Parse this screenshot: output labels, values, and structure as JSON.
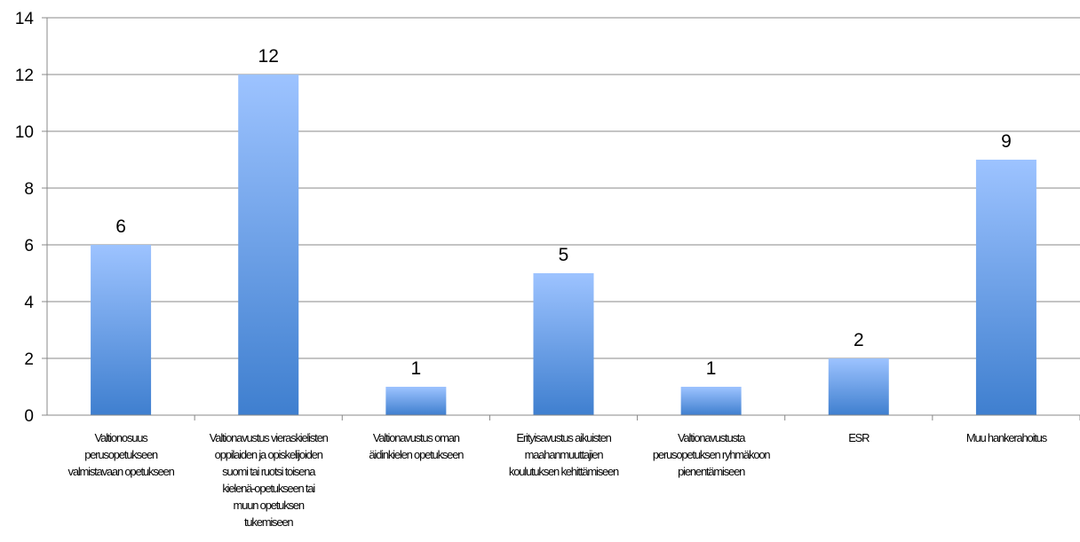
{
  "chart_data": {
    "type": "bar",
    "categories": [
      [
        "Valtionosuus",
        "perusopetukseen",
        "valmistavaan opetukseen"
      ],
      [
        "Valtionavustus vieraskielisten",
        "oppilaiden ja opiskelijoiden",
        "suomi tai ruotsi toisena",
        "kielenä-opetukseen tai",
        "muun opetuksen",
        "tukemiseen"
      ],
      [
        "Valtionavustus oman",
        "äidinkielen opetukseen"
      ],
      [
        "Erityisavustus aikuisten",
        "maahanmuuttajien",
        "koulutuksen kehittämiseen"
      ],
      [
        "Valtionavustusta",
        "perusopetuksen ryhmäkoon",
        "pienentämiseen"
      ],
      [
        "ESR"
      ],
      [
        "Muu hankerahoitus"
      ]
    ],
    "values": [
      6,
      12,
      1,
      5,
      1,
      2,
      9
    ],
    "ylim": [
      0,
      14
    ],
    "yticks": [
      0,
      2,
      4,
      6,
      8,
      10,
      12,
      14
    ],
    "grid": true,
    "data_labels": true,
    "colors": {
      "bar_top": "#9dc3ff",
      "bar_bottom": "#3f7fcf",
      "grid": "#888888",
      "axis": "#888888"
    }
  }
}
